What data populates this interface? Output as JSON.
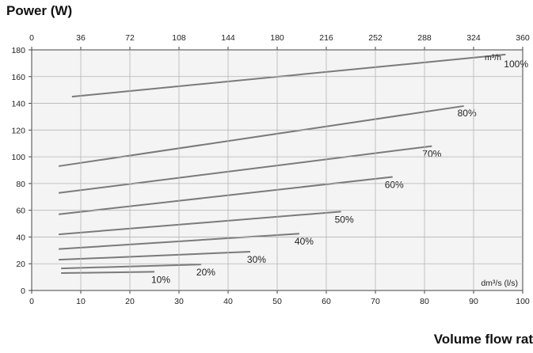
{
  "chart_data": {
    "type": "line",
    "ylabel": "Power (W)",
    "xlabel": "Volume flow rat",
    "x_bottom_unit": "dm³/s (l/s)",
    "x_top_unit": "m³/h",
    "xlim": [
      0,
      100
    ],
    "ylim": [
      0,
      180
    ],
    "x_top_lim": [
      0,
      360
    ],
    "x_ticks": [
      "0",
      "10",
      "20",
      "30",
      "40",
      "50",
      "60",
      "70",
      "80",
      "90",
      "100"
    ],
    "x_top_ticks": [
      "0",
      "36",
      "72",
      "108",
      "144",
      "180",
      "216",
      "252",
      "288",
      "324",
      "360"
    ],
    "y_ticks": [
      "0",
      "20",
      "40",
      "60",
      "80",
      "100",
      "120",
      "140",
      "160",
      "180"
    ],
    "grid": true,
    "series": [
      {
        "name": "100%",
        "x": [
          8.2,
          96.5
        ],
        "y": [
          145,
          176.5
        ]
      },
      {
        "name": "80%",
        "x": [
          5.5,
          88.0
        ],
        "y": [
          93,
          138
        ]
      },
      {
        "name": "70%",
        "x": [
          5.5,
          81.5
        ],
        "y": [
          73,
          108
        ]
      },
      {
        "name": "60%",
        "x": [
          5.5,
          73.5
        ],
        "y": [
          57,
          85
        ]
      },
      {
        "name": "50%",
        "x": [
          5.5,
          63.0
        ],
        "y": [
          42,
          59
        ]
      },
      {
        "name": "40%",
        "x": [
          5.5,
          54.5
        ],
        "y": [
          31,
          42.5
        ]
      },
      {
        "name": "30%",
        "x": [
          5.5,
          44.5
        ],
        "y": [
          23,
          29
        ]
      },
      {
        "name": "20%",
        "x": [
          6.0,
          34.5
        ],
        "y": [
          16.5,
          19.5
        ]
      },
      {
        "name": "10%",
        "x": [
          6.0,
          25.0
        ],
        "y": [
          13,
          14
        ]
      }
    ],
    "line_color": "#7a7a7a",
    "grid_color": "#b5b5b5",
    "background_color": "#f4f4f4"
  }
}
